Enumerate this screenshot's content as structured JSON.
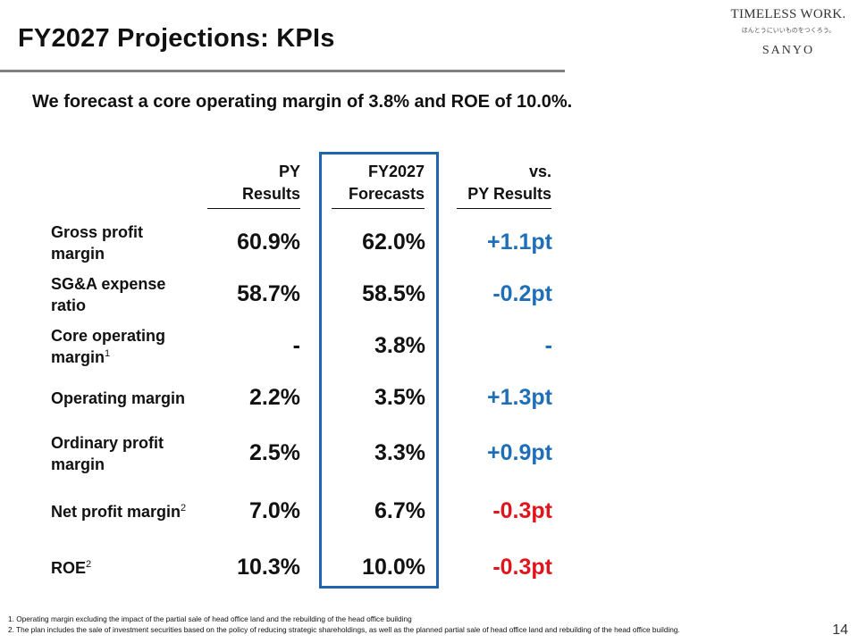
{
  "header": {
    "title": "FY2027 Projections: KPIs",
    "logo": {
      "line1": "TIMELESS WORK.",
      "line2": "ほんとうにいいものをつくろう。",
      "line3": "SANYO"
    }
  },
  "subtitle": "We forecast a core operating margin of 3.8% and ROE of 10.0%.",
  "table": {
    "columns": [
      {
        "line1": "PY",
        "line2": "Results"
      },
      {
        "line1": "FY2027",
        "line2": "Forecasts"
      },
      {
        "line1": "vs.",
        "line2": "PY Results"
      }
    ],
    "rows": [
      {
        "label1": "Gross profit",
        "label2": "margin",
        "sup": "",
        "py": "60.9%",
        "fy": "62.0%",
        "diff": "+1.1pt",
        "diff_color": "blue"
      },
      {
        "label1": "SG&A expense",
        "label2": "ratio",
        "sup": "",
        "py": "58.7%",
        "fy": "58.5%",
        "diff": "-0.2pt",
        "diff_color": "blue"
      },
      {
        "label1": "Core operating",
        "label2": "margin",
        "sup": "1",
        "py": "-",
        "fy": "3.8%",
        "diff": "-",
        "diff_color": "blue"
      },
      {
        "label1": "Operating margin",
        "label2": "",
        "sup": "",
        "py": "2.2%",
        "fy": "3.5%",
        "diff": "+1.3pt",
        "diff_color": "blue"
      },
      {
        "label1": "Ordinary profit",
        "label2": "margin",
        "sup": "",
        "py": "2.5%",
        "fy": "3.3%",
        "diff": "+0.9pt",
        "diff_color": "blue"
      },
      {
        "label1": "Net profit margin",
        "label2": "",
        "sup": "2",
        "py": "7.0%",
        "fy": "6.7%",
        "diff": "-0.3pt",
        "diff_color": "red"
      },
      {
        "label1": "ROE",
        "label2": "",
        "sup": "2",
        "py": "10.3%",
        "fy": "10.0%",
        "diff": "-0.3pt",
        "diff_color": "red"
      }
    ]
  },
  "colors": {
    "blue": "#1f6fb8",
    "red": "#e0141b",
    "highlight_border": "#1f64b0"
  },
  "footnotes": [
    "1. Operating margin excluding the impact of the partial sale of head office land and the rebuilding of the head office building",
    "2. The plan includes the sale of investment securities based on the policy of reducing strategic shareholdings, as well as the planned partial sale of head office land and rebuilding of the head office building."
  ],
  "page_number": "14"
}
